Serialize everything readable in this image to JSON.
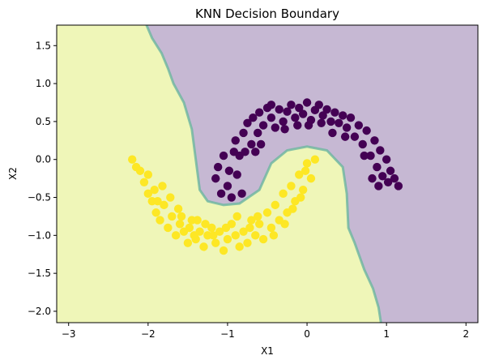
{
  "chart_data": {
    "type": "scatter",
    "title": "KNN Decision Boundary",
    "xlabel": "X1",
    "ylabel": "X2",
    "xlim": [
      -3.15,
      2.15
    ],
    "ylim": [
      -2.15,
      1.77
    ],
    "xticks": [
      -3,
      -2,
      -1,
      0,
      1,
      2
    ],
    "yticks": [
      -2.0,
      -1.5,
      -1.0,
      -0.5,
      0.0,
      0.5,
      1.0,
      1.5
    ],
    "xtick_labels": [
      "−3",
      "−2",
      "−1",
      "0",
      "1",
      "2"
    ],
    "ytick_labels": [
      "−2.0",
      "−1.5",
      "−1.0",
      "−0.5",
      "0.0",
      "0.5",
      "1.0",
      "1.5"
    ],
    "grid": false,
    "colors": {
      "class0": "#440154",
      "class1": "#fde725",
      "region0": "#c6b8d3",
      "region1": "#eff6b8",
      "boundary": "#6bb5a0"
    },
    "decision_boundary": {
      "top_branch": [
        [
          -2.02,
          1.77
        ],
        [
          -1.95,
          1.6
        ],
        [
          -1.83,
          1.4
        ],
        [
          -1.75,
          1.2
        ],
        [
          -1.68,
          1.0
        ],
        [
          -1.55,
          0.75
        ],
        [
          -1.45,
          0.4
        ],
        [
          -1.4,
          0.0
        ],
        [
          -1.35,
          -0.4
        ],
        [
          -1.25,
          -0.55
        ],
        [
          -1.05,
          -0.6
        ],
        [
          -0.85,
          -0.58
        ],
        [
          -0.6,
          -0.4
        ],
        [
          -0.45,
          -0.05
        ],
        [
          -0.25,
          0.12
        ],
        [
          0.0,
          0.17
        ],
        [
          0.25,
          0.12
        ],
        [
          0.45,
          -0.1
        ],
        [
          0.5,
          -0.45
        ],
        [
          0.52,
          -0.9
        ],
        [
          0.6,
          -1.1
        ],
        [
          0.72,
          -1.45
        ],
        [
          0.83,
          -1.7
        ],
        [
          0.9,
          -1.95
        ],
        [
          0.93,
          -2.15
        ]
      ]
    },
    "series": [
      {
        "class": 0,
        "points": [
          [
            -1.12,
            -0.1
          ],
          [
            -1.05,
            0.05
          ],
          [
            -1.15,
            -0.25
          ],
          [
            -1.0,
            -0.35
          ],
          [
            -0.95,
            -0.5
          ],
          [
            -0.88,
            -0.2
          ],
          [
            -0.85,
            0.05
          ],
          [
            -0.9,
            0.25
          ],
          [
            -0.8,
            0.35
          ],
          [
            -0.82,
            -0.45
          ],
          [
            -0.75,
            0.48
          ],
          [
            -0.7,
            0.2
          ],
          [
            -0.68,
            0.55
          ],
          [
            -0.62,
            0.35
          ],
          [
            -0.6,
            0.62
          ],
          [
            -0.55,
            0.45
          ],
          [
            -0.5,
            0.68
          ],
          [
            -0.45,
            0.55
          ],
          [
            -0.4,
            0.42
          ],
          [
            -0.35,
            0.66
          ],
          [
            -0.3,
            0.5
          ],
          [
            -0.25,
            0.63
          ],
          [
            -0.2,
            0.72
          ],
          [
            -0.15,
            0.55
          ],
          [
            -0.1,
            0.68
          ],
          [
            -0.05,
            0.6
          ],
          [
            0.0,
            0.75
          ],
          [
            0.05,
            0.52
          ],
          [
            0.1,
            0.65
          ],
          [
            0.15,
            0.72
          ],
          [
            0.2,
            0.58
          ],
          [
            0.25,
            0.66
          ],
          [
            0.3,
            0.5
          ],
          [
            0.35,
            0.62
          ],
          [
            0.4,
            0.48
          ],
          [
            0.45,
            0.58
          ],
          [
            0.5,
            0.42
          ],
          [
            0.55,
            0.55
          ],
          [
            0.6,
            0.3
          ],
          [
            0.65,
            0.45
          ],
          [
            0.7,
            0.2
          ],
          [
            0.75,
            0.38
          ],
          [
            0.8,
            0.05
          ],
          [
            0.85,
            0.25
          ],
          [
            0.88,
            -0.1
          ],
          [
            0.92,
            0.12
          ],
          [
            0.95,
            -0.22
          ],
          [
            1.0,
            0.0
          ],
          [
            1.05,
            -0.15
          ],
          [
            1.1,
            -0.25
          ],
          [
            1.15,
            -0.35
          ],
          [
            0.9,
            -0.35
          ],
          [
            -0.98,
            -0.15
          ],
          [
            -1.08,
            -0.45
          ],
          [
            -0.92,
            0.1
          ],
          [
            -0.78,
            0.1
          ],
          [
            -0.65,
            0.1
          ],
          [
            -0.58,
            0.2
          ],
          [
            -0.28,
            0.4
          ],
          [
            0.02,
            0.45
          ],
          [
            0.32,
            0.35
          ],
          [
            0.48,
            0.3
          ],
          [
            0.72,
            0.05
          ],
          [
            0.82,
            -0.25
          ],
          [
            1.02,
            -0.3
          ],
          [
            -0.45,
            0.72
          ],
          [
            0.18,
            0.48
          ],
          [
            -0.12,
            0.45
          ]
        ]
      },
      {
        "class": 1,
        "points": [
          [
            -2.2,
            0.0
          ],
          [
            -2.1,
            -0.15
          ],
          [
            -2.05,
            -0.3
          ],
          [
            -2.0,
            -0.45
          ],
          [
            -1.95,
            -0.55
          ],
          [
            -1.9,
            -0.7
          ],
          [
            -1.85,
            -0.8
          ],
          [
            -1.8,
            -0.6
          ],
          [
            -1.75,
            -0.9
          ],
          [
            -1.7,
            -0.75
          ],
          [
            -1.65,
            -1.0
          ],
          [
            -1.6,
            -0.85
          ],
          [
            -1.55,
            -0.95
          ],
          [
            -1.5,
            -1.1
          ],
          [
            -1.45,
            -0.8
          ],
          [
            -1.4,
            -1.05
          ],
          [
            -1.35,
            -0.95
          ],
          [
            -1.3,
            -1.15
          ],
          [
            -1.25,
            -1.0
          ],
          [
            -1.2,
            -0.9
          ],
          [
            -1.15,
            -1.1
          ],
          [
            -1.1,
            -0.95
          ],
          [
            -1.05,
            -1.2
          ],
          [
            -1.0,
            -1.05
          ],
          [
            -0.95,
            -0.85
          ],
          [
            -0.9,
            -1.0
          ],
          [
            -0.85,
            -1.15
          ],
          [
            -0.8,
            -0.95
          ],
          [
            -0.75,
            -1.1
          ],
          [
            -0.7,
            -0.8
          ],
          [
            -0.65,
            -1.0
          ],
          [
            -0.6,
            -0.85
          ],
          [
            -0.55,
            -1.05
          ],
          [
            -0.5,
            -0.7
          ],
          [
            -0.45,
            -0.9
          ],
          [
            -0.4,
            -0.6
          ],
          [
            -0.35,
            -0.8
          ],
          [
            -0.3,
            -0.45
          ],
          [
            -0.25,
            -0.7
          ],
          [
            -0.2,
            -0.35
          ],
          [
            -0.15,
            -0.55
          ],
          [
            -0.1,
            -0.2
          ],
          [
            -0.05,
            -0.4
          ],
          [
            0.0,
            -0.05
          ],
          [
            0.05,
            -0.25
          ],
          [
            0.1,
            0.0
          ],
          [
            -0.02,
            -0.15
          ],
          [
            -2.15,
            -0.1
          ],
          [
            -2.0,
            -0.2
          ],
          [
            -1.92,
            -0.4
          ],
          [
            -1.88,
            -0.55
          ],
          [
            -1.82,
            -0.35
          ],
          [
            -1.72,
            -0.5
          ],
          [
            -1.62,
            -0.65
          ],
          [
            -1.58,
            -0.75
          ],
          [
            -1.48,
            -0.9
          ],
          [
            -1.38,
            -0.8
          ],
          [
            -1.28,
            -0.85
          ],
          [
            -1.18,
            -1.0
          ],
          [
            -0.88,
            -0.75
          ],
          [
            -0.62,
            -0.75
          ],
          [
            -0.42,
            -1.0
          ],
          [
            -0.28,
            -0.85
          ],
          [
            -0.18,
            -0.65
          ],
          [
            -0.08,
            -0.5
          ],
          [
            -0.72,
            -0.9
          ],
          [
            -1.02,
            -0.9
          ],
          [
            -1.42,
            -1.0
          ]
        ]
      }
    ]
  }
}
